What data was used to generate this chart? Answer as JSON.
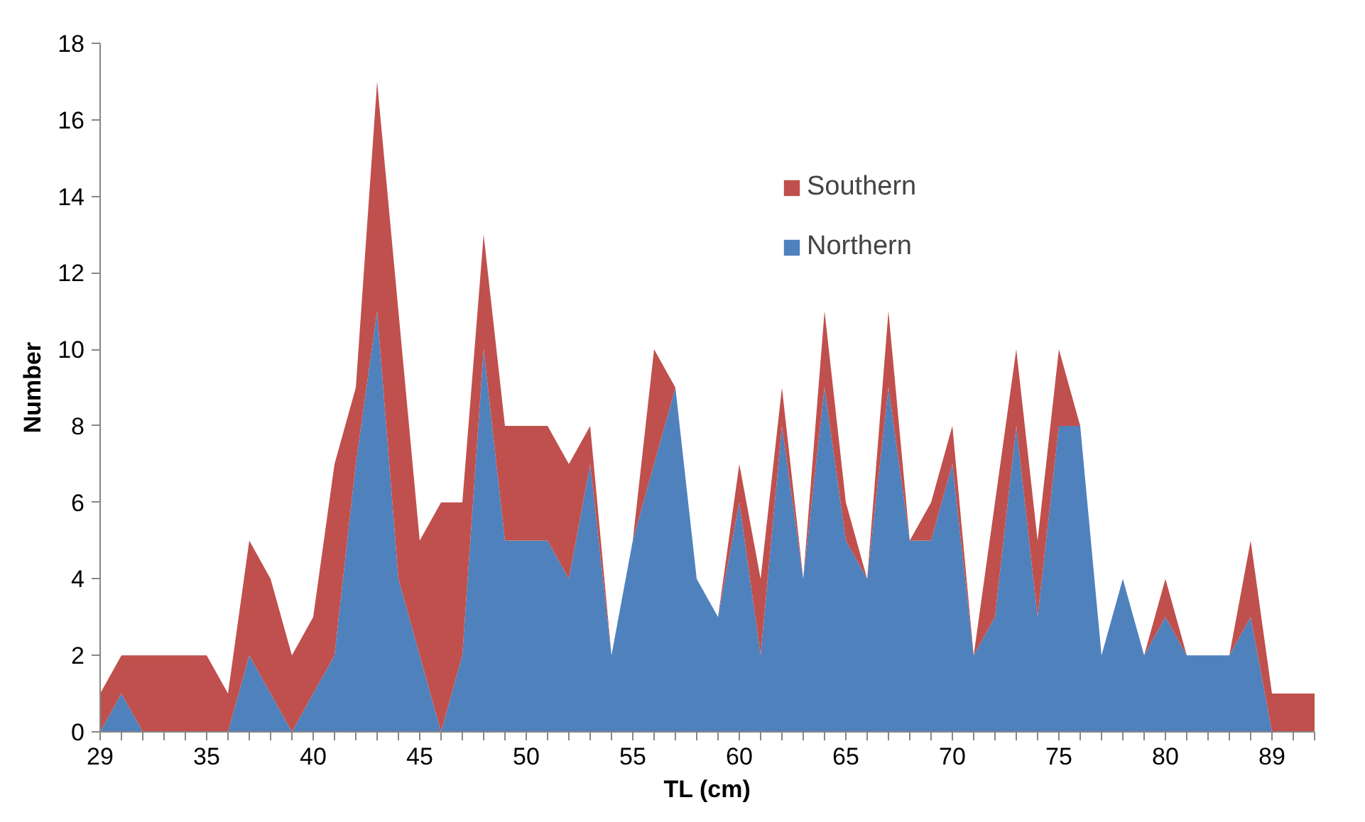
{
  "chart_data": {
    "type": "area",
    "stacked": true,
    "xlabel": "TL (cm)",
    "ylabel": "Number",
    "categories": [
      "29",
      null,
      null,
      null,
      null,
      "35",
      null,
      null,
      null,
      null,
      "40",
      null,
      null,
      null,
      null,
      "45",
      null,
      null,
      null,
      null,
      "50",
      null,
      null,
      null,
      null,
      "55",
      null,
      null,
      null,
      null,
      "60",
      null,
      null,
      null,
      null,
      "65",
      null,
      null,
      null,
      null,
      "70",
      null,
      null,
      null,
      null,
      "75",
      null,
      null,
      null,
      null,
      "80",
      null,
      null,
      null,
      null,
      "89",
      null,
      null
    ],
    "series": [
      {
        "name": "Northern",
        "color": "#4f81bd",
        "values": [
          0,
          1,
          0,
          0,
          0,
          0,
          0,
          2,
          1,
          0,
          1,
          2,
          7,
          11,
          4,
          2,
          0,
          2,
          10,
          5,
          5,
          5,
          4,
          7,
          2,
          5,
          7,
          9,
          4,
          3,
          6,
          2,
          8,
          4,
          9,
          5,
          4,
          9,
          5,
          5,
          7,
          2,
          3,
          8,
          3,
          8,
          8,
          2,
          4,
          2,
          3,
          2,
          2,
          2,
          3,
          0,
          0,
          0
        ]
      },
      {
        "name": "Southern",
        "color": "#c0504d",
        "values": [
          1,
          1,
          2,
          2,
          2,
          2,
          1,
          3,
          3,
          2,
          2,
          5,
          2,
          6,
          7,
          3,
          6,
          4,
          3,
          3,
          3,
          3,
          3,
          1,
          0,
          0,
          3,
          0,
          0,
          0,
          1,
          2,
          1,
          0,
          2,
          1,
          0,
          2,
          0,
          1,
          1,
          0,
          3,
          2,
          2,
          2,
          0,
          0,
          0,
          0,
          1,
          0,
          0,
          0,
          2,
          1,
          1,
          1
        ]
      }
    ],
    "ylim": [
      0,
      18
    ],
    "yticks": [
      0,
      2,
      4,
      6,
      8,
      10,
      12,
      14,
      16,
      18
    ],
    "grid": false,
    "legend": "top right"
  }
}
